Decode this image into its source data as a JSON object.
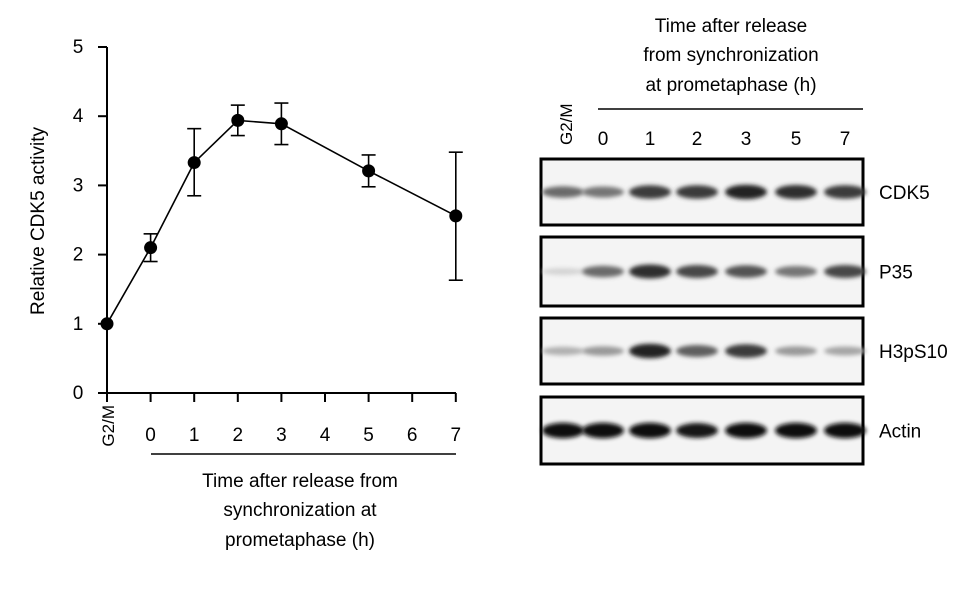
{
  "chart_data": {
    "type": "line",
    "ylabel": "Relative CDK5 activity",
    "xlabel_lines": [
      "Time after release from",
      "synchronization at",
      "prometaphase (h)"
    ],
    "x_start_label": "G2/M",
    "x_ticks": [
      "0",
      "1",
      "2",
      "3",
      "4",
      "5",
      "6",
      "7"
    ],
    "ylim": [
      0,
      5
    ],
    "y_ticks": [
      "0",
      "1",
      "2",
      "3",
      "4",
      "5"
    ],
    "series": [
      {
        "points": [
          {
            "x": "G2/M",
            "y": 1.0,
            "err_low": 1.0,
            "err_high": 1.0
          },
          {
            "x": "0",
            "y": 2.1,
            "err_low": 1.9,
            "err_high": 2.3
          },
          {
            "x": "1",
            "y": 3.33,
            "err_low": 2.85,
            "err_high": 3.82
          },
          {
            "x": "2",
            "y": 3.94,
            "err_low": 3.72,
            "err_high": 4.16
          },
          {
            "x": "3",
            "y": 3.89,
            "err_low": 3.59,
            "err_high": 4.19
          },
          {
            "x": "5",
            "y": 3.21,
            "err_low": 2.98,
            "err_high": 3.44
          },
          {
            "x": "7",
            "y": 2.56,
            "err_low": 1.63,
            "err_high": 3.48
          }
        ]
      }
    ]
  },
  "blot": {
    "header_lines": [
      "Time after release",
      "from synchronization",
      "at prometaphase (h)"
    ],
    "start_lane": "G2/M",
    "lanes": [
      "0",
      "1",
      "2",
      "3",
      "5",
      "7"
    ],
    "rows": [
      {
        "label": "CDK5",
        "intensities": [
          0.55,
          0.5,
          0.75,
          0.75,
          0.85,
          0.8,
          0.75
        ]
      },
      {
        "label": "P35",
        "intensities": [
          0.1,
          0.55,
          0.8,
          0.7,
          0.65,
          0.5,
          0.7
        ]
      },
      {
        "label": "H3pS10",
        "intensities": [
          0.25,
          0.35,
          0.85,
          0.6,
          0.75,
          0.35,
          0.3
        ]
      },
      {
        "label": "Actin",
        "intensities": [
          0.95,
          0.95,
          0.95,
          0.9,
          0.95,
          0.95,
          0.95
        ]
      }
    ]
  }
}
